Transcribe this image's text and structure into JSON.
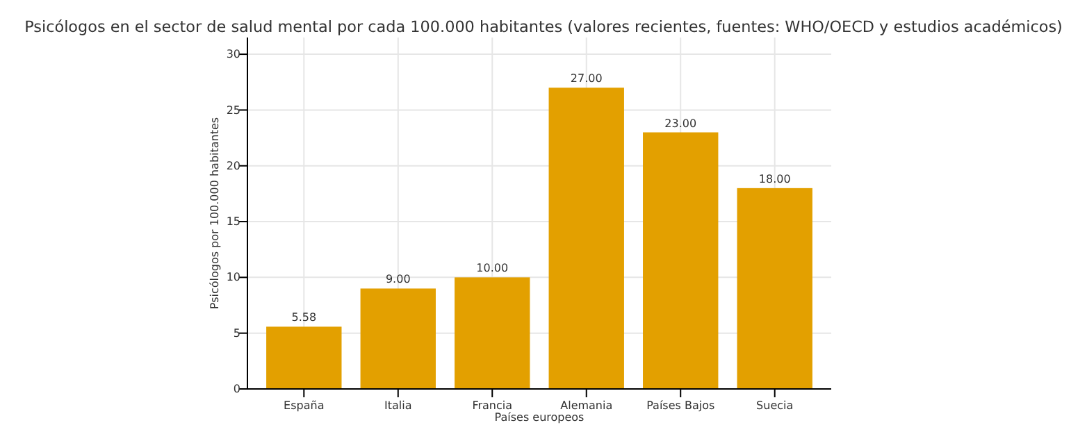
{
  "chart_data": {
    "type": "bar",
    "title": "Psicólogos en el sector de salud mental por cada 100.000 habitantes (valores recientes, fuentes: WHO/OECD y estudios académicos)",
    "xlabel": "Países europeos",
    "ylabel": "Psicólogos por 100.000 habitantes",
    "categories": [
      "España",
      "Italia",
      "Francia",
      "Alemania",
      "Países Bajos",
      "Suecia"
    ],
    "values": [
      5.58,
      9,
      10,
      27,
      23,
      18
    ],
    "value_labels": [
      "5.58",
      "9.00",
      "10.00",
      "27.00",
      "23.00",
      "18.00"
    ],
    "color": "#e3a000",
    "ylim": [
      0,
      31.5
    ],
    "yticks": [
      0,
      5,
      10,
      15,
      20,
      25,
      30
    ],
    "grid": true
  }
}
